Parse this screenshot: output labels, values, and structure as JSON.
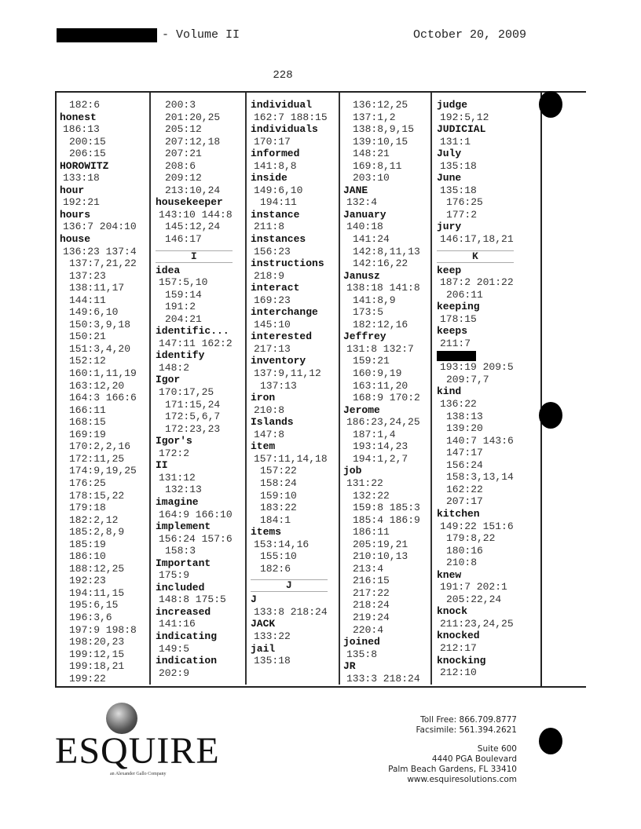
{
  "header": {
    "volume": "- Volume II",
    "date": "October 20, 2009",
    "page_number": "228"
  },
  "index_columns": [
    [
      [
        "c",
        "182:6"
      ],
      [
        "h",
        "honest"
      ],
      [
        "r",
        "186:13"
      ],
      [
        "c",
        "200:15"
      ],
      [
        "c",
        "206:15"
      ],
      [
        "h",
        "HOROWITZ"
      ],
      [
        "r",
        "133:18"
      ],
      [
        "h",
        "hour"
      ],
      [
        "r",
        "192:21"
      ],
      [
        "h",
        "hours"
      ],
      [
        "r",
        "136:7 204:10"
      ],
      [
        "h",
        "house"
      ],
      [
        "r",
        "136:23 137:4"
      ],
      [
        "c",
        "137:7,21,22"
      ],
      [
        "c",
        "137:23"
      ],
      [
        "c",
        "138:11,17"
      ],
      [
        "c",
        "144:11"
      ],
      [
        "c",
        "149:6,10"
      ],
      [
        "c",
        "150:3,9,18"
      ],
      [
        "c",
        "150:21"
      ],
      [
        "c",
        "151:3,4,20"
      ],
      [
        "c",
        "152:12"
      ],
      [
        "c",
        "160:1,11,19"
      ],
      [
        "c",
        "163:12,20"
      ],
      [
        "c",
        "164:3 166:6"
      ],
      [
        "c",
        "166:11"
      ],
      [
        "c",
        "168:15"
      ],
      [
        "c",
        "169:19"
      ],
      [
        "c",
        "170:2,2,16"
      ],
      [
        "c",
        "172:11,25"
      ],
      [
        "c",
        "174:9,19,25"
      ],
      [
        "c",
        "176:25"
      ],
      [
        "c",
        "178:15,22"
      ],
      [
        "c",
        "179:18"
      ],
      [
        "c",
        "182:2,12"
      ],
      [
        "c",
        "185:2,8,9"
      ],
      [
        "c",
        "185:19"
      ],
      [
        "c",
        "186:10"
      ],
      [
        "c",
        "188:12,25"
      ],
      [
        "c",
        "192:23"
      ],
      [
        "c",
        "194:11,15"
      ],
      [
        "c",
        "195:6,15"
      ],
      [
        "c",
        "196:3,6"
      ],
      [
        "c",
        "197:9 198:8"
      ],
      [
        "c",
        "198:20,23"
      ],
      [
        "c",
        "199:12,15"
      ],
      [
        "c",
        "199:18,21"
      ],
      [
        "c",
        "199:22"
      ]
    ],
    [
      [
        "c",
        "200:3"
      ],
      [
        "c",
        "201:20,25"
      ],
      [
        "c",
        "205:12"
      ],
      [
        "c",
        "207:12,18"
      ],
      [
        "c",
        "207:21"
      ],
      [
        "c",
        "208:6"
      ],
      [
        "c",
        "209:12"
      ],
      [
        "c",
        "213:10,24"
      ],
      [
        "h",
        "housekeeper"
      ],
      [
        "r",
        "143:10 144:8"
      ],
      [
        "c",
        "145:12,24"
      ],
      [
        "c",
        "146:17"
      ],
      [
        "s",
        "I"
      ],
      [
        "h",
        "idea"
      ],
      [
        "r",
        "157:5,10"
      ],
      [
        "c",
        "159:14"
      ],
      [
        "c",
        "191:2"
      ],
      [
        "c",
        "204:21"
      ],
      [
        "h",
        "identific..."
      ],
      [
        "r",
        "147:11 162:2"
      ],
      [
        "h",
        "identify"
      ],
      [
        "r",
        "148:2"
      ],
      [
        "h",
        "Igor"
      ],
      [
        "r",
        "170:17,25"
      ],
      [
        "c",
        "171:15,24"
      ],
      [
        "c",
        "172:5,6,7"
      ],
      [
        "c",
        "172:23,23"
      ],
      [
        "h",
        "Igor's"
      ],
      [
        "r",
        "172:2"
      ],
      [
        "h",
        "II"
      ],
      [
        "r",
        "131:12"
      ],
      [
        "c",
        "132:13"
      ],
      [
        "h",
        "imagine"
      ],
      [
        "r",
        "164:9 166:10"
      ],
      [
        "h",
        "implement"
      ],
      [
        "r",
        "156:24 157:6"
      ],
      [
        "c",
        "158:3"
      ],
      [
        "h",
        "Important"
      ],
      [
        "r",
        "175:9"
      ],
      [
        "h",
        "included"
      ],
      [
        "r",
        "148:8 175:5"
      ],
      [
        "h",
        "increased"
      ],
      [
        "r",
        "141:16"
      ],
      [
        "h",
        "indicating"
      ],
      [
        "r",
        "149:5"
      ],
      [
        "h",
        "indication"
      ],
      [
        "r",
        "202:9"
      ]
    ],
    [
      [
        "h",
        "individual"
      ],
      [
        "r",
        "162:7 188:15"
      ],
      [
        "h",
        "individuals"
      ],
      [
        "r",
        "170:17"
      ],
      [
        "h",
        "informed"
      ],
      [
        "r",
        "141:8,8"
      ],
      [
        "h",
        "inside"
      ],
      [
        "r",
        "149:6,10"
      ],
      [
        "c",
        "194:11"
      ],
      [
        "h",
        "instance"
      ],
      [
        "r",
        "211:8"
      ],
      [
        "h",
        "instances"
      ],
      [
        "r",
        "156:23"
      ],
      [
        "h",
        "instructions"
      ],
      [
        "r",
        "218:9"
      ],
      [
        "h",
        "interact"
      ],
      [
        "r",
        "169:23"
      ],
      [
        "h",
        "interchange"
      ],
      [
        "r",
        "145:10"
      ],
      [
        "h",
        "interested"
      ],
      [
        "r",
        "217:13"
      ],
      [
        "h",
        "inventory"
      ],
      [
        "r",
        "137:9,11,12"
      ],
      [
        "c",
        "137:13"
      ],
      [
        "h",
        "iron"
      ],
      [
        "r",
        "210:8"
      ],
      [
        "h",
        "Islands"
      ],
      [
        "r",
        "147:8"
      ],
      [
        "h",
        "item"
      ],
      [
        "r",
        "157:11,14,18"
      ],
      [
        "c",
        "157:22"
      ],
      [
        "c",
        "158:24"
      ],
      [
        "c",
        "159:10"
      ],
      [
        "c",
        "183:22"
      ],
      [
        "c",
        "184:1"
      ],
      [
        "h",
        "items"
      ],
      [
        "r",
        "153:14,16"
      ],
      [
        "c",
        "155:10"
      ],
      [
        "c",
        "182:6"
      ],
      [
        "s",
        "J"
      ],
      [
        "h",
        "J"
      ],
      [
        "r",
        "133:8 218:24"
      ],
      [
        "h",
        "JACK"
      ],
      [
        "r",
        "133:22"
      ],
      [
        "h",
        "jail"
      ],
      [
        "r",
        "135:18"
      ]
    ],
    [
      [
        "c",
        "136:12,25"
      ],
      [
        "c",
        "137:1,2"
      ],
      [
        "c",
        "138:8,9,15"
      ],
      [
        "c",
        "139:10,15"
      ],
      [
        "c",
        "148:21"
      ],
      [
        "c",
        "169:8,11"
      ],
      [
        "c",
        "203:10"
      ],
      [
        "h",
        "JANE"
      ],
      [
        "r",
        "132:4"
      ],
      [
        "h",
        "January"
      ],
      [
        "r",
        "140:18"
      ],
      [
        "c",
        "141:24"
      ],
      [
        "c",
        "142:8,11,13"
      ],
      [
        "c",
        "142:16,22"
      ],
      [
        "h",
        "Janusz"
      ],
      [
        "r",
        "138:18 141:8"
      ],
      [
        "c",
        "141:8,9"
      ],
      [
        "c",
        "173:5"
      ],
      [
        "c",
        "182:12,16"
      ],
      [
        "h",
        "Jeffrey"
      ],
      [
        "r",
        "131:8 132:7"
      ],
      [
        "c",
        "159:21"
      ],
      [
        "c",
        "160:9,19"
      ],
      [
        "c",
        "163:11,20"
      ],
      [
        "c",
        "168:9 170:2"
      ],
      [
        "h",
        "Jerome"
      ],
      [
        "r",
        "186:23,24,25"
      ],
      [
        "c",
        "187:1,4"
      ],
      [
        "c",
        "193:14,23"
      ],
      [
        "c",
        "194:1,2,7"
      ],
      [
        "h",
        "job"
      ],
      [
        "r",
        "131:22"
      ],
      [
        "c",
        "132:22"
      ],
      [
        "c",
        "159:8 185:3"
      ],
      [
        "c",
        "185:4 186:9"
      ],
      [
        "c",
        "186:11"
      ],
      [
        "c",
        "205:19,21"
      ],
      [
        "c",
        "210:10,13"
      ],
      [
        "c",
        "213:4"
      ],
      [
        "c",
        "216:15"
      ],
      [
        "c",
        "217:22"
      ],
      [
        "c",
        "218:24"
      ],
      [
        "c",
        "219:24"
      ],
      [
        "c",
        "220:4"
      ],
      [
        "h",
        "joined"
      ],
      [
        "r",
        "135:8"
      ],
      [
        "h",
        "JR"
      ],
      [
        "r",
        "133:3 218:24"
      ]
    ],
    [
      [
        "h",
        "judge"
      ],
      [
        "r",
        "192:5,12"
      ],
      [
        "h",
        "JUDICIAL"
      ],
      [
        "r",
        "131:1"
      ],
      [
        "h",
        "July"
      ],
      [
        "r",
        "135:18"
      ],
      [
        "h",
        "June"
      ],
      [
        "r",
        "135:18"
      ],
      [
        "c",
        "176:25"
      ],
      [
        "c",
        "177:2"
      ],
      [
        "h",
        "jury"
      ],
      [
        "r",
        "146:17,18,21"
      ],
      [
        "s",
        "K"
      ],
      [
        "h",
        "keep"
      ],
      [
        "r",
        "187:2 201:22"
      ],
      [
        "c",
        "206:11"
      ],
      [
        "h",
        "keeping"
      ],
      [
        "r",
        "178:15"
      ],
      [
        "h",
        "keeps"
      ],
      [
        "r",
        "211:7"
      ],
      [
        "x",
        ""
      ],
      [
        "r",
        "193:19 209:5"
      ],
      [
        "c",
        "209:7,7"
      ],
      [
        "h",
        "kind"
      ],
      [
        "r",
        "136:22"
      ],
      [
        "c",
        "138:13"
      ],
      [
        "c",
        "139:20"
      ],
      [
        "c",
        "140:7 143:6"
      ],
      [
        "c",
        "147:17"
      ],
      [
        "c",
        "156:24"
      ],
      [
        "c",
        "158:3,13,14"
      ],
      [
        "c",
        "162:22"
      ],
      [
        "c",
        "207:17"
      ],
      [
        "h",
        "kitchen"
      ],
      [
        "r",
        "149:22 151:6"
      ],
      [
        "c",
        "179:8,22"
      ],
      [
        "c",
        "180:16"
      ],
      [
        "c",
        "210:8"
      ],
      [
        "h",
        "knew"
      ],
      [
        "r",
        "191:7 202:1"
      ],
      [
        "c",
        "205:22,24"
      ],
      [
        "h",
        "knock"
      ],
      [
        "r",
        "211:23,24,25"
      ],
      [
        "h",
        "knocked"
      ],
      [
        "r",
        "212:17"
      ],
      [
        "h",
        "knocking"
      ],
      [
        "r",
        "212:10"
      ]
    ]
  ],
  "footer": {
    "logo_word": "ESQUIRE",
    "logo_tagline": "an Alexander Gallo Company",
    "toll_free": "Toll Free: 866.709.8777",
    "facsimile": "Facsimile: 561.394.2621",
    "suite": "Suite 600",
    "street": "4440 PGA Boulevard",
    "city": "Palm Beach Gardens, FL 33410",
    "website": "www.esquiresolutions.com"
  }
}
